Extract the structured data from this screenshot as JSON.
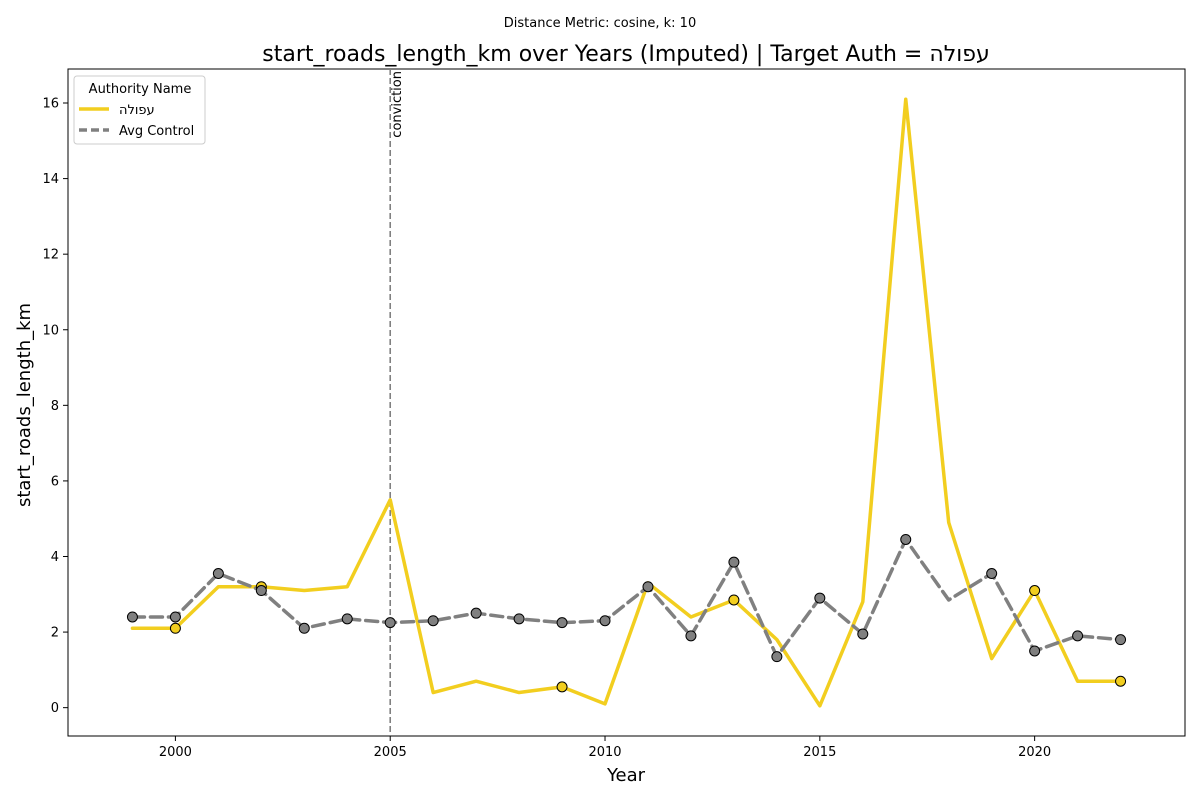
{
  "chart_data": {
    "type": "line",
    "subtitle": "Distance Metric: cosine, k: 10",
    "title": "start_roads_length_km over Years (Imputed) | Target Auth = עפולה",
    "xlabel": "Year",
    "ylabel": "start_roads_length_km",
    "xlim": [
      1997.5,
      2023.5
    ],
    "ylim": [
      -0.75,
      16.9
    ],
    "xticks": [
      2000,
      2005,
      2010,
      2015,
      2020
    ],
    "yticks": [
      0,
      2,
      4,
      6,
      8,
      10,
      12,
      14,
      16
    ],
    "grid": false,
    "legend": {
      "title": "Authority Name",
      "position": "top-left"
    },
    "vline": {
      "x": 2005,
      "label": "conviction",
      "color": "#808080"
    },
    "x": [
      1999,
      2000,
      2001,
      2002,
      2003,
      2004,
      2005,
      2006,
      2007,
      2008,
      2009,
      2010,
      2011,
      2012,
      2013,
      2014,
      2015,
      2016,
      2017,
      2018,
      2019,
      2020,
      2021,
      2022
    ],
    "series": [
      {
        "name": "עפולה",
        "color": "#f2ce1f",
        "dash": "solid",
        "values": [
          2.1,
          2.1,
          3.2,
          3.2,
          3.1,
          3.2,
          5.5,
          0.4,
          0.7,
          0.4,
          0.55,
          0.1,
          3.3,
          2.4,
          2.85,
          1.8,
          0.05,
          2.8,
          16.1,
          4.9,
          1.3,
          3.1,
          0.7,
          0.7
        ],
        "markers": [
          2000,
          2002,
          2009,
          2013,
          2020,
          2022
        ]
      },
      {
        "name": "Avg Control",
        "color": "#808080",
        "dash": "dashed",
        "values": [
          2.4,
          2.4,
          3.55,
          3.1,
          2.1,
          2.35,
          2.25,
          2.3,
          2.5,
          2.35,
          2.25,
          2.3,
          3.2,
          1.9,
          3.85,
          1.35,
          2.9,
          1.95,
          4.45,
          2.85,
          3.55,
          1.5,
          1.9,
          1.8
        ],
        "markers": [
          1999,
          2000,
          2001,
          2002,
          2003,
          2004,
          2005,
          2006,
          2007,
          2008,
          2009,
          2010,
          2011,
          2012,
          2013,
          2014,
          2015,
          2016,
          2017,
          2019,
          2020,
          2021,
          2022
        ]
      }
    ]
  }
}
